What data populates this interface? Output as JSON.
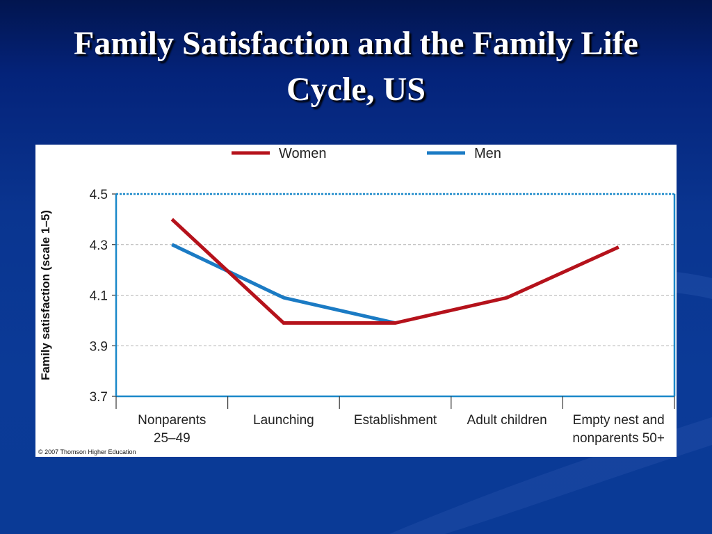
{
  "slide": {
    "title": "Family Satisfaction and the Family Life Cycle, US"
  },
  "copyright": "© 2007 Thomson Higher Education",
  "colors": {
    "women": "#b5121b",
    "men": "#1b7bc4",
    "axis": "#1a88c9",
    "grid": "#b0b0b0"
  },
  "chart_data": {
    "type": "line",
    "title": "",
    "xlabel": "",
    "ylabel": "Family satisfaction (scale 1–5)",
    "ylim": [
      3.7,
      4.5
    ],
    "yticks": [
      "4.5",
      "4.3",
      "4.1",
      "3.9",
      "3.7"
    ],
    "ytick_values": [
      4.5,
      4.3,
      4.1,
      3.9,
      3.7
    ],
    "grid": true,
    "legend_position": "top",
    "categories": [
      [
        "Nonparents",
        "25–49"
      ],
      [
        "Launching"
      ],
      [
        "Establishment"
      ],
      [
        "Adult children"
      ],
      [
        "Empty nest and",
        "nonparents 50+"
      ]
    ],
    "series": [
      {
        "name": "Women",
        "color": "#b5121b",
        "values": [
          4.4,
          3.99,
          3.99,
          4.09,
          4.29
        ]
      },
      {
        "name": "Men",
        "color": "#1b7bc4",
        "values": [
          4.3,
          4.09,
          3.99,
          null,
          null
        ]
      }
    ]
  }
}
